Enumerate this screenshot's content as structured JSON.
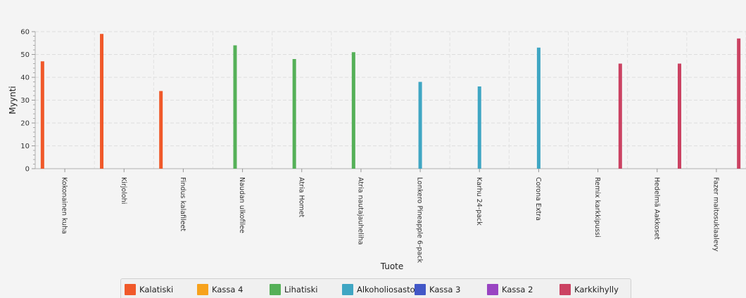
{
  "chart_data": {
    "type": "bar",
    "xlabel": "Tuote",
    "ylabel": "Myynti",
    "ylim": [
      0,
      60
    ],
    "yticks": [
      0,
      10,
      20,
      30,
      40,
      50,
      60
    ],
    "grid": true,
    "legend_position": "bottom",
    "categories": [
      "Kokonainen kuha",
      "Kirjolohi",
      "Findus kalafileet",
      "Naudan ulkofilee",
      "Atria Homet",
      "Atria nautajauheliha",
      "Lonkero Pineapple 6-pack",
      "Karhu 24-pack",
      "Corona Extra",
      "Remix karkkipussi",
      "Hedelmä Aakkoset",
      "Fazer maitosuklaalevy"
    ],
    "series": [
      {
        "name": "Kalatiski",
        "color": "#f0592a",
        "values": [
          47,
          59,
          34,
          null,
          null,
          null,
          null,
          null,
          null,
          null,
          null,
          null
        ]
      },
      {
        "name": "Kassa 4",
        "color": "#f7a21c",
        "values": [
          null,
          null,
          null,
          null,
          null,
          null,
          null,
          null,
          null,
          null,
          null,
          null
        ]
      },
      {
        "name": "Lihatiski",
        "color": "#55b058",
        "values": [
          null,
          null,
          null,
          54,
          48,
          51,
          null,
          null,
          null,
          null,
          null,
          null
        ]
      },
      {
        "name": "Alkoholiosasto",
        "color": "#3fa6c3",
        "values": [
          null,
          null,
          null,
          null,
          null,
          null,
          38,
          36,
          53,
          null,
          null,
          null
        ]
      },
      {
        "name": "Kassa 3",
        "color": "#4257c7",
        "values": [
          null,
          null,
          null,
          null,
          null,
          null,
          null,
          null,
          null,
          null,
          null,
          null
        ]
      },
      {
        "name": "Kassa 2",
        "color": "#9944c2",
        "values": [
          null,
          null,
          null,
          null,
          null,
          null,
          null,
          null,
          null,
          null,
          null,
          null
        ]
      },
      {
        "name": "Karkkihylly",
        "color": "#cb4262",
        "values": [
          null,
          null,
          null,
          null,
          null,
          null,
          null,
          null,
          null,
          46,
          46,
          57
        ]
      }
    ]
  }
}
